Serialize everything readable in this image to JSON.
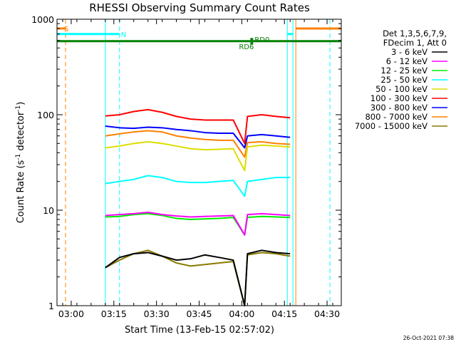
{
  "chart_data": {
    "type": "line",
    "title": "RHESSI Observing Summary Count Rates",
    "xlabel": "Start Time (13-Feb-15 02:57:02)",
    "ylabel_main": "Count Rate (s",
    "ylabel_sup1": "-1",
    "ylabel_mid": " detector",
    "ylabel_sup2": "-1",
    "ylabel_end": ")",
    "y_scale": "log",
    "xlim_min": [
      -2,
      36
    ],
    "ylim": [
      1,
      1000
    ],
    "x_ticks": [
      {
        "v": 3,
        "label": "03:00"
      },
      {
        "v": 18,
        "label": "03:15"
      },
      {
        "v": 33,
        "label": "03:30"
      },
      {
        "v": 48,
        "label": "03:45"
      },
      {
        "v": 63,
        "label": "04:00"
      },
      {
        "v": 78,
        "label": "04:15"
      },
      {
        "v": 93,
        "label": "04:30"
      }
    ],
    "y_ticks": [
      {
        "v": 1,
        "label": "1"
      },
      {
        "v": 10,
        "label": "10"
      },
      {
        "v": 100,
        "label": "100"
      },
      {
        "v": 1000,
        "label": "1000"
      }
    ],
    "legend_header": [
      "Det 1,3,5,6,7,9,",
      "FDecim 1, Att 0"
    ],
    "legend_position": "right",
    "series": [
      {
        "name": "3 - 6 keV",
        "color": "#000000",
        "x": [
          15,
          20,
          25,
          30,
          35,
          40,
          45,
          50,
          55,
          60,
          64,
          65,
          70,
          75,
          80
        ],
        "y": [
          2.5,
          3.2,
          3.5,
          3.6,
          3.3,
          3.0,
          3.1,
          3.4,
          3.2,
          3.0,
          0.3,
          3.5,
          3.8,
          3.6,
          3.5
        ]
      },
      {
        "name": "6 - 12 keV",
        "color": "#ff00ff",
        "x": [
          15,
          20,
          25,
          30,
          35,
          40,
          45,
          50,
          55,
          60,
          64,
          65,
          70,
          75,
          80
        ],
        "y": [
          8.8,
          9.0,
          9.2,
          9.5,
          9.0,
          8.7,
          8.5,
          8.6,
          8.7,
          8.8,
          5.5,
          9.0,
          9.2,
          9.0,
          8.8
        ]
      },
      {
        "name": "12 - 25 keV",
        "color": "#00ee00",
        "x": [
          15,
          20,
          25,
          30,
          35,
          40,
          45,
          50,
          55,
          60,
          64,
          65,
          70,
          75,
          80
        ],
        "y": [
          8.5,
          8.6,
          9.0,
          9.2,
          8.8,
          8.2,
          8.0,
          8.1,
          8.2,
          8.4,
          5.5,
          8.4,
          8.6,
          8.5,
          8.4
        ]
      },
      {
        "name": "25 - 50 keV",
        "color": "#00ffff",
        "x": [
          15,
          20,
          25,
          30,
          35,
          40,
          45,
          50,
          55,
          60,
          64,
          65,
          70,
          75,
          80
        ],
        "y": [
          19,
          20,
          21,
          23,
          22,
          20,
          19.5,
          19.5,
          20,
          20.5,
          14,
          20,
          21,
          22,
          22
        ]
      },
      {
        "name": "50 - 100 keV",
        "color": "#dddd00",
        "x": [
          15,
          20,
          25,
          30,
          35,
          40,
          45,
          50,
          55,
          60,
          64,
          65,
          70,
          75,
          80
        ],
        "y": [
          45,
          47,
          50,
          52,
          50,
          47,
          44,
          43,
          43.5,
          44,
          26,
          46,
          48,
          47,
          46
        ]
      },
      {
        "name": "100 - 300 keV",
        "color": "#ff0000",
        "x": [
          15,
          20,
          25,
          30,
          35,
          40,
          45,
          50,
          55,
          60,
          64,
          65,
          70,
          75,
          80
        ],
        "y": [
          97,
          100,
          108,
          113,
          106,
          96,
          90,
          88,
          88,
          88,
          50,
          96,
          100,
          96,
          93
        ]
      },
      {
        "name": "300 - 800 keV",
        "color": "#0000ff",
        "x": [
          15,
          20,
          25,
          30,
          35,
          40,
          45,
          50,
          55,
          60,
          64,
          65,
          70,
          75,
          80
        ],
        "y": [
          76,
          73,
          72,
          74,
          73,
          70,
          68,
          65,
          64,
          64,
          45,
          60,
          62,
          60,
          58
        ]
      },
      {
        "name": "800 - 7000 keV",
        "color": "#ff8000",
        "x": [
          15,
          20,
          25,
          30,
          35,
          40,
          45,
          50,
          55,
          60,
          64,
          65,
          70,
          75,
          80
        ],
        "y": [
          60,
          63,
          66,
          68,
          66,
          60,
          57,
          55,
          54,
          54,
          36,
          51,
          52,
          50,
          49
        ]
      },
      {
        "name": "7000 - 15000 keV",
        "color": "#8a7a00",
        "x": [
          15,
          20,
          25,
          30,
          35,
          40,
          45,
          50,
          55,
          60,
          64,
          65,
          70,
          75,
          80
        ],
        "y": [
          2.5,
          3.0,
          3.5,
          3.8,
          3.3,
          2.8,
          2.6,
          2.7,
          2.8,
          2.9,
          0.3,
          3.4,
          3.6,
          3.5,
          3.3
        ]
      }
    ],
    "vertical_lines": [
      {
        "x": 1,
        "color": "#ff8000",
        "style": "dashed"
      },
      {
        "x": 15,
        "color": "#00ffff",
        "style": "solid"
      },
      {
        "x": 20,
        "color": "#00ffff",
        "style": "dashed"
      },
      {
        "x": 79,
        "color": "#00ffff",
        "style": "solid"
      },
      {
        "x": 81,
        "color": "#00ffff",
        "style": "solid"
      },
      {
        "x": 82,
        "color": "#ff8000",
        "style": "solid"
      },
      {
        "x": 94,
        "color": "#00ffff",
        "style": "dashed"
      }
    ],
    "top_segments": [
      {
        "x1": -2,
        "x2": 1,
        "y": 800,
        "color": "#ff8000"
      },
      {
        "x1": -2,
        "x2": 20,
        "y": 700,
        "color": "#00ffff"
      },
      {
        "x1": -2,
        "x2": 98,
        "y": 590,
        "color": "#008000"
      },
      {
        "x1": 66,
        "x2": 67,
        "y": 620,
        "color": "#008000"
      },
      {
        "x1": 66,
        "x2": 67,
        "y": 560,
        "color": "#008000"
      },
      {
        "x1": 79,
        "x2": 81,
        "y": 700,
        "color": "#00ffff"
      },
      {
        "x1": 82,
        "x2": 98,
        "y": 800,
        "color": "#ff8000"
      }
    ],
    "markers": [
      {
        "text": "S",
        "x": 0.5,
        "y": 800,
        "color": "#ff8000"
      },
      {
        "text": "N",
        "x": 20.5,
        "y": 700,
        "color": "#00ffff"
      },
      {
        "text": "RD0",
        "x": 67.5,
        "y": 620,
        "color": "#008000"
      },
      {
        "text": "RD6",
        "x": 62,
        "y": 520,
        "color": "#008000"
      }
    ]
  },
  "timestamp": "26-Oct-2021 07:38"
}
